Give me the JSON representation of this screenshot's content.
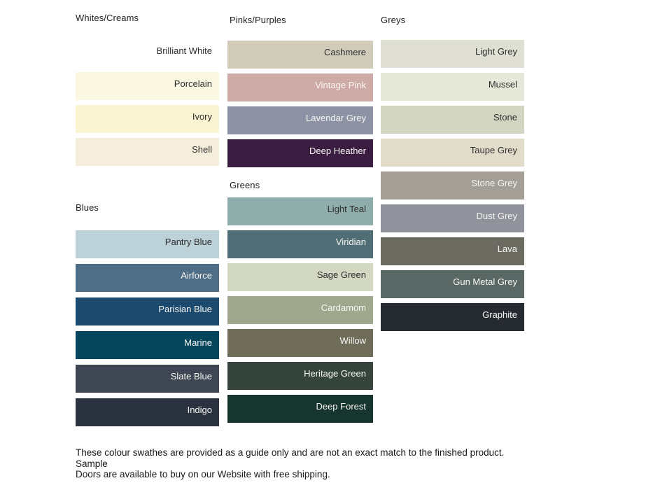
{
  "sections": [
    {
      "title": "Whites/Creams",
      "swatches": [
        {
          "label": "Brilliant White",
          "color": "#ffffff",
          "label_style": "dark"
        },
        {
          "label": "Porcelain",
          "color": "#fbf8e1",
          "label_style": "dark"
        },
        {
          "label": "Ivory",
          "color": "#faf4d3",
          "label_style": "dark"
        },
        {
          "label": "Shell",
          "color": "#f6eedd",
          "label_style": "dark"
        }
      ]
    },
    {
      "title": "Blues",
      "swatches": [
        {
          "label": "Pantry Blue",
          "color": "#bdd1d8",
          "label_style": "dark"
        },
        {
          "label": "Airforce",
          "color": "#4e6e87",
          "label_style": "light"
        },
        {
          "label": "Parisian Blue",
          "color": "#1c4a6e",
          "label_style": "light"
        },
        {
          "label": "Marine",
          "color": "#05465c",
          "label_style": "light"
        },
        {
          "label": "Slate Blue",
          "color": "#3f4653",
          "label_style": "light"
        },
        {
          "label": "Indigo",
          "color": "#2b323f",
          "label_style": "light"
        }
      ]
    },
    {
      "title": "Pinks/Purples",
      "swatches": [
        {
          "label": "Cashmere",
          "color": "#d1cbb9",
          "label_style": "dark"
        },
        {
          "label": "Vintage Pink",
          "color": "#cfaba7",
          "label_style": "light"
        },
        {
          "label": "Lavendar Grey",
          "color": "#8d93a5",
          "label_style": "light"
        },
        {
          "label": "Deep Heather",
          "color": "#3a1d41",
          "label_style": "light"
        }
      ]
    },
    {
      "title": "Greens",
      "swatches": [
        {
          "label": "Light Teal",
          "color": "#8fadab",
          "label_style": "dark"
        },
        {
          "label": "Viridian",
          "color": "#4f6e75",
          "label_style": "light"
        },
        {
          "label": "Sage Green",
          "color": "#d3d8c3",
          "label_style": "dark"
        },
        {
          "label": "Cardamom",
          "color": "#9fa78c",
          "label_style": "light"
        },
        {
          "label": "Willow",
          "color": "#6f6d59",
          "label_style": "light"
        },
        {
          "label": "Heritage Green",
          "color": "#35453c",
          "label_style": "light"
        },
        {
          "label": "Deep Forest",
          "color": "#16352e",
          "label_style": "light"
        }
      ]
    },
    {
      "title": "Greys",
      "swatches": [
        {
          "label": "Light Grey",
          "color": "#dfdfd3",
          "label_style": "dark"
        },
        {
          "label": "Mussel",
          "color": "#e6e8d9",
          "label_style": "dark"
        },
        {
          "label": "Stone",
          "color": "#d2d5c2",
          "label_style": "dark"
        },
        {
          "label": "Taupe Grey",
          "color": "#e1dcca",
          "label_style": "dark"
        },
        {
          "label": "Stone Grey",
          "color": "#a49f96",
          "label_style": "light"
        },
        {
          "label": "Dust Grey",
          "color": "#90939b",
          "label_style": "light"
        },
        {
          "label": "Lava",
          "color": "#6c6b62",
          "label_style": "light"
        },
        {
          "label": "Gun Metal Grey",
          "color": "#596864",
          "label_style": "light"
        },
        {
          "label": "Graphite",
          "color": "#252b31",
          "label_style": "light"
        }
      ]
    }
  ],
  "footer": {
    "line1": "These colour swathes are provided as a guide only and are not an exact match to the finished product.  Sample",
    "line2": "Doors are available to buy on our Website with free shipping."
  }
}
